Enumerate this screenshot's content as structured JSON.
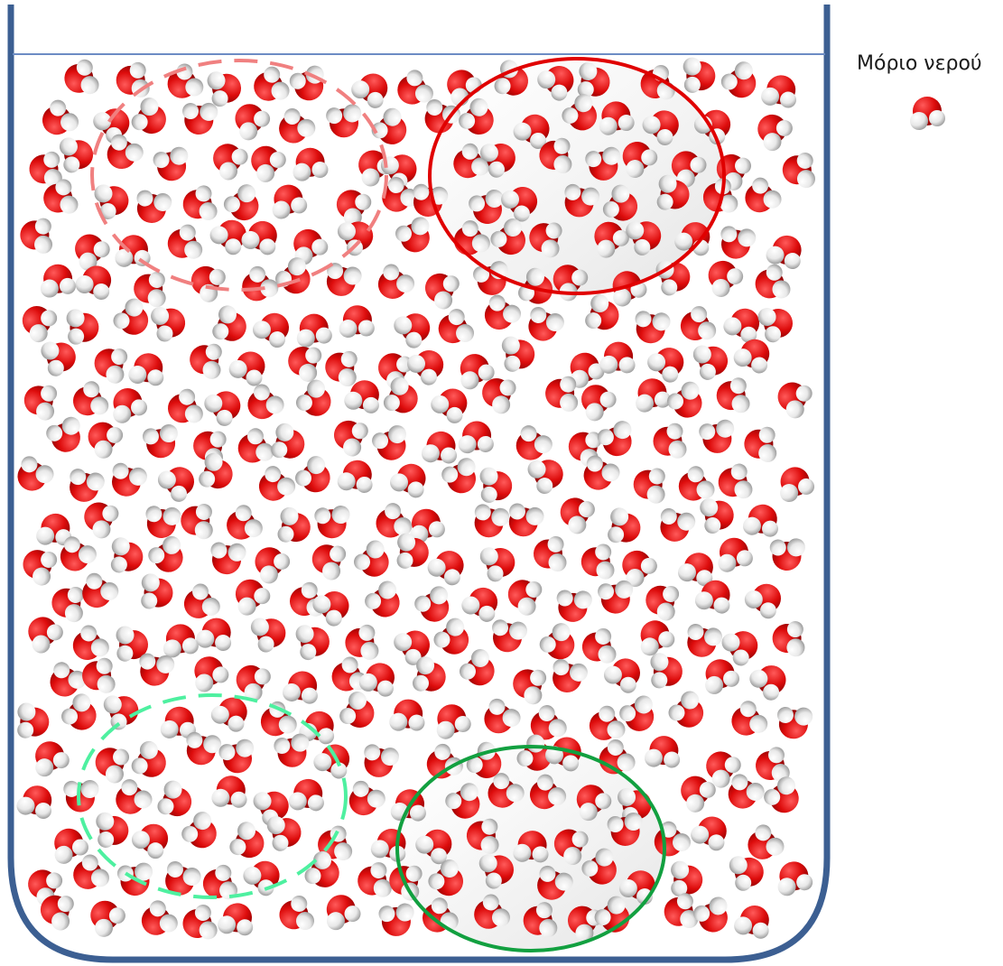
{
  "legend": {
    "label": "Μόριο νερού"
  },
  "colors": {
    "container": "#3c5f92",
    "water_surface": "#6c8cc4",
    "oxygen": "#e01010",
    "hydrogen": "#f2f2f2",
    "region_red_dashed": "#f08080",
    "region_red_solid": "#e00000",
    "region_green_dashed": "#4ef0a0",
    "region_green_solid": "#12a040"
  },
  "icons": {
    "molecule": "water-molecule-icon"
  }
}
